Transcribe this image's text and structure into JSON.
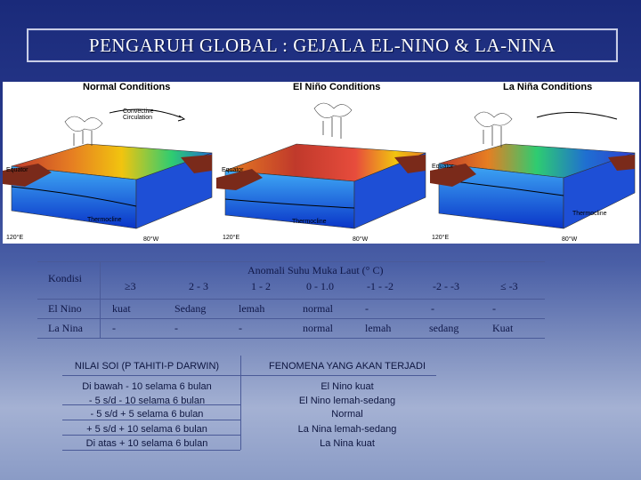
{
  "title": "PENGARUH GLOBAL : GEJALA EL-NINO & LA-NINA",
  "diagram": {
    "panels": [
      {
        "title": "Normal Conditions",
        "labels": [
          "Convective Circulation",
          "Equator",
          "Thermocline",
          "120°E",
          "80°W"
        ]
      },
      {
        "title": "El Niño Conditions",
        "labels": [
          "Equator",
          "Thermocline",
          "120°E",
          "80°W"
        ]
      },
      {
        "title": "La Niña Conditions",
        "labels": [
          "Equator",
          "Thermocline",
          "120°E",
          "80°W"
        ]
      }
    ]
  },
  "anomaly_table": {
    "kondisi_header": "Kondisi",
    "main_header": "Anomali Suhu Muka Laut (° C)",
    "columns": [
      "≥3",
      "2 - 3",
      "1 - 2",
      "0 - 1.0",
      "-1 - -2",
      "-2 - -3",
      "≤ -3"
    ],
    "rows": [
      {
        "label": "El Nino",
        "values": [
          "kuat",
          "Sedang",
          "lemah",
          "normal",
          "-",
          "-",
          "-"
        ]
      },
      {
        "label": "La Nina",
        "values": [
          "-",
          "-",
          "-",
          "normal",
          "lemah",
          "sedang",
          "Kuat"
        ]
      }
    ]
  },
  "soi_table": {
    "left_header": "NILAI SOI (P TAHITI-P DARWIN)",
    "right_header": "FENOMENA YANG AKAN TERJADI",
    "rows": [
      {
        "soi": "Di bawah - 10 selama 6 bulan",
        "phenomenon": "El Nino kuat"
      },
      {
        "soi": "- 5 s/d - 10 selama 6 bulan",
        "phenomenon": "El Nino lemah-sedang"
      },
      {
        "soi": "- 5 s/d + 5 selama 6 bulan",
        "phenomenon": "Normal"
      },
      {
        "soi": "+ 5 s/d + 10 selama 6 bulan",
        "phenomenon": "La Nina lemah-sedang"
      },
      {
        "soi": "Di atas + 10 selama 6 bulan",
        "phenomenon": "La Nina kuat"
      }
    ]
  }
}
